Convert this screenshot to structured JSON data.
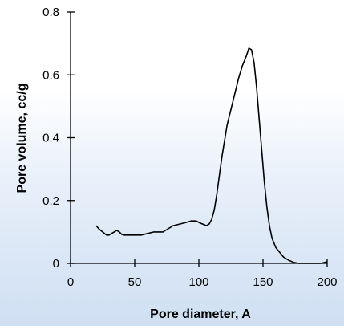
{
  "chart_data": {
    "type": "line",
    "title": "",
    "xlabel": "Pore diameter, A",
    "ylabel": "Pore volume, cc/g",
    "xlim": [
      0,
      200
    ],
    "ylim": [
      0,
      0.8
    ],
    "x_ticks": [
      "0",
      "50",
      "100",
      "150",
      "200"
    ],
    "y_ticks": [
      "0",
      "0.2",
      "0.4",
      "0.6",
      "0.8"
    ],
    "x_tick_values": [
      0,
      50,
      100,
      150,
      200
    ],
    "y_tick_values": [
      0,
      0.2,
      0.4,
      0.6,
      0.8
    ],
    "grid": false,
    "legend": "none",
    "line_color": "#000000",
    "series": [
      {
        "x": [
          20,
          22,
          25,
          28,
          30,
          32,
          34,
          36,
          38,
          40,
          42,
          45,
          50,
          55,
          60,
          65,
          68,
          72,
          76,
          80,
          85,
          90,
          94,
          98,
          100,
          103,
          106,
          108,
          110,
          112,
          114,
          116,
          118,
          120,
          122,
          125,
          128,
          131,
          134,
          137,
          139,
          141,
          143,
          145,
          147,
          149,
          151,
          153,
          155,
          157,
          160,
          163,
          166,
          170,
          174,
          178,
          182,
          185,
          190,
          195,
          200
        ],
        "y": [
          0.12,
          0.11,
          0.1,
          0.09,
          0.09,
          0.095,
          0.1,
          0.105,
          0.1,
          0.092,
          0.09,
          0.09,
          0.09,
          0.09,
          0.095,
          0.1,
          0.1,
          0.1,
          0.11,
          0.12,
          0.125,
          0.13,
          0.135,
          0.135,
          0.13,
          0.125,
          0.12,
          0.125,
          0.14,
          0.17,
          0.22,
          0.28,
          0.34,
          0.39,
          0.44,
          0.49,
          0.54,
          0.59,
          0.63,
          0.66,
          0.685,
          0.68,
          0.64,
          0.56,
          0.46,
          0.36,
          0.26,
          0.18,
          0.12,
          0.08,
          0.05,
          0.035,
          0.02,
          0.01,
          0.003,
          0.0,
          0.0,
          0.0,
          0.0,
          0.0,
          0.005
        ]
      }
    ]
  }
}
